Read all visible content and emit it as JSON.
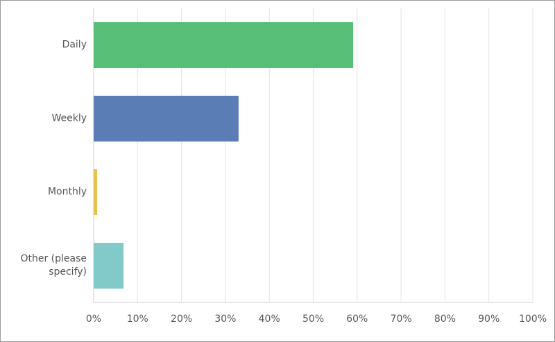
{
  "chart_data": {
    "type": "bar",
    "orientation": "horizontal",
    "categories": [
      "Daily",
      "Weekly",
      "Monthly",
      "Other (please specify)"
    ],
    "values": [
      59.1,
      33.0,
      0.8,
      6.8
    ],
    "colors": [
      "#57bf77",
      "#5a7db5",
      "#e8c24f",
      "#82c9c9"
    ],
    "xlim": [
      0,
      100
    ],
    "xticks": [
      {
        "value": 0,
        "label": "0%"
      },
      {
        "value": 10,
        "label": "10%"
      },
      {
        "value": 20,
        "label": "20%"
      },
      {
        "value": 30,
        "label": "30%"
      },
      {
        "value": 40,
        "label": "40%"
      },
      {
        "value": 50,
        "label": "50%"
      },
      {
        "value": 60,
        "label": "60%"
      },
      {
        "value": 70,
        "label": "70%"
      },
      {
        "value": 80,
        "label": "80%"
      },
      {
        "value": 90,
        "label": "90%"
      },
      {
        "value": 100,
        "label": "100%"
      }
    ],
    "grid": true
  }
}
